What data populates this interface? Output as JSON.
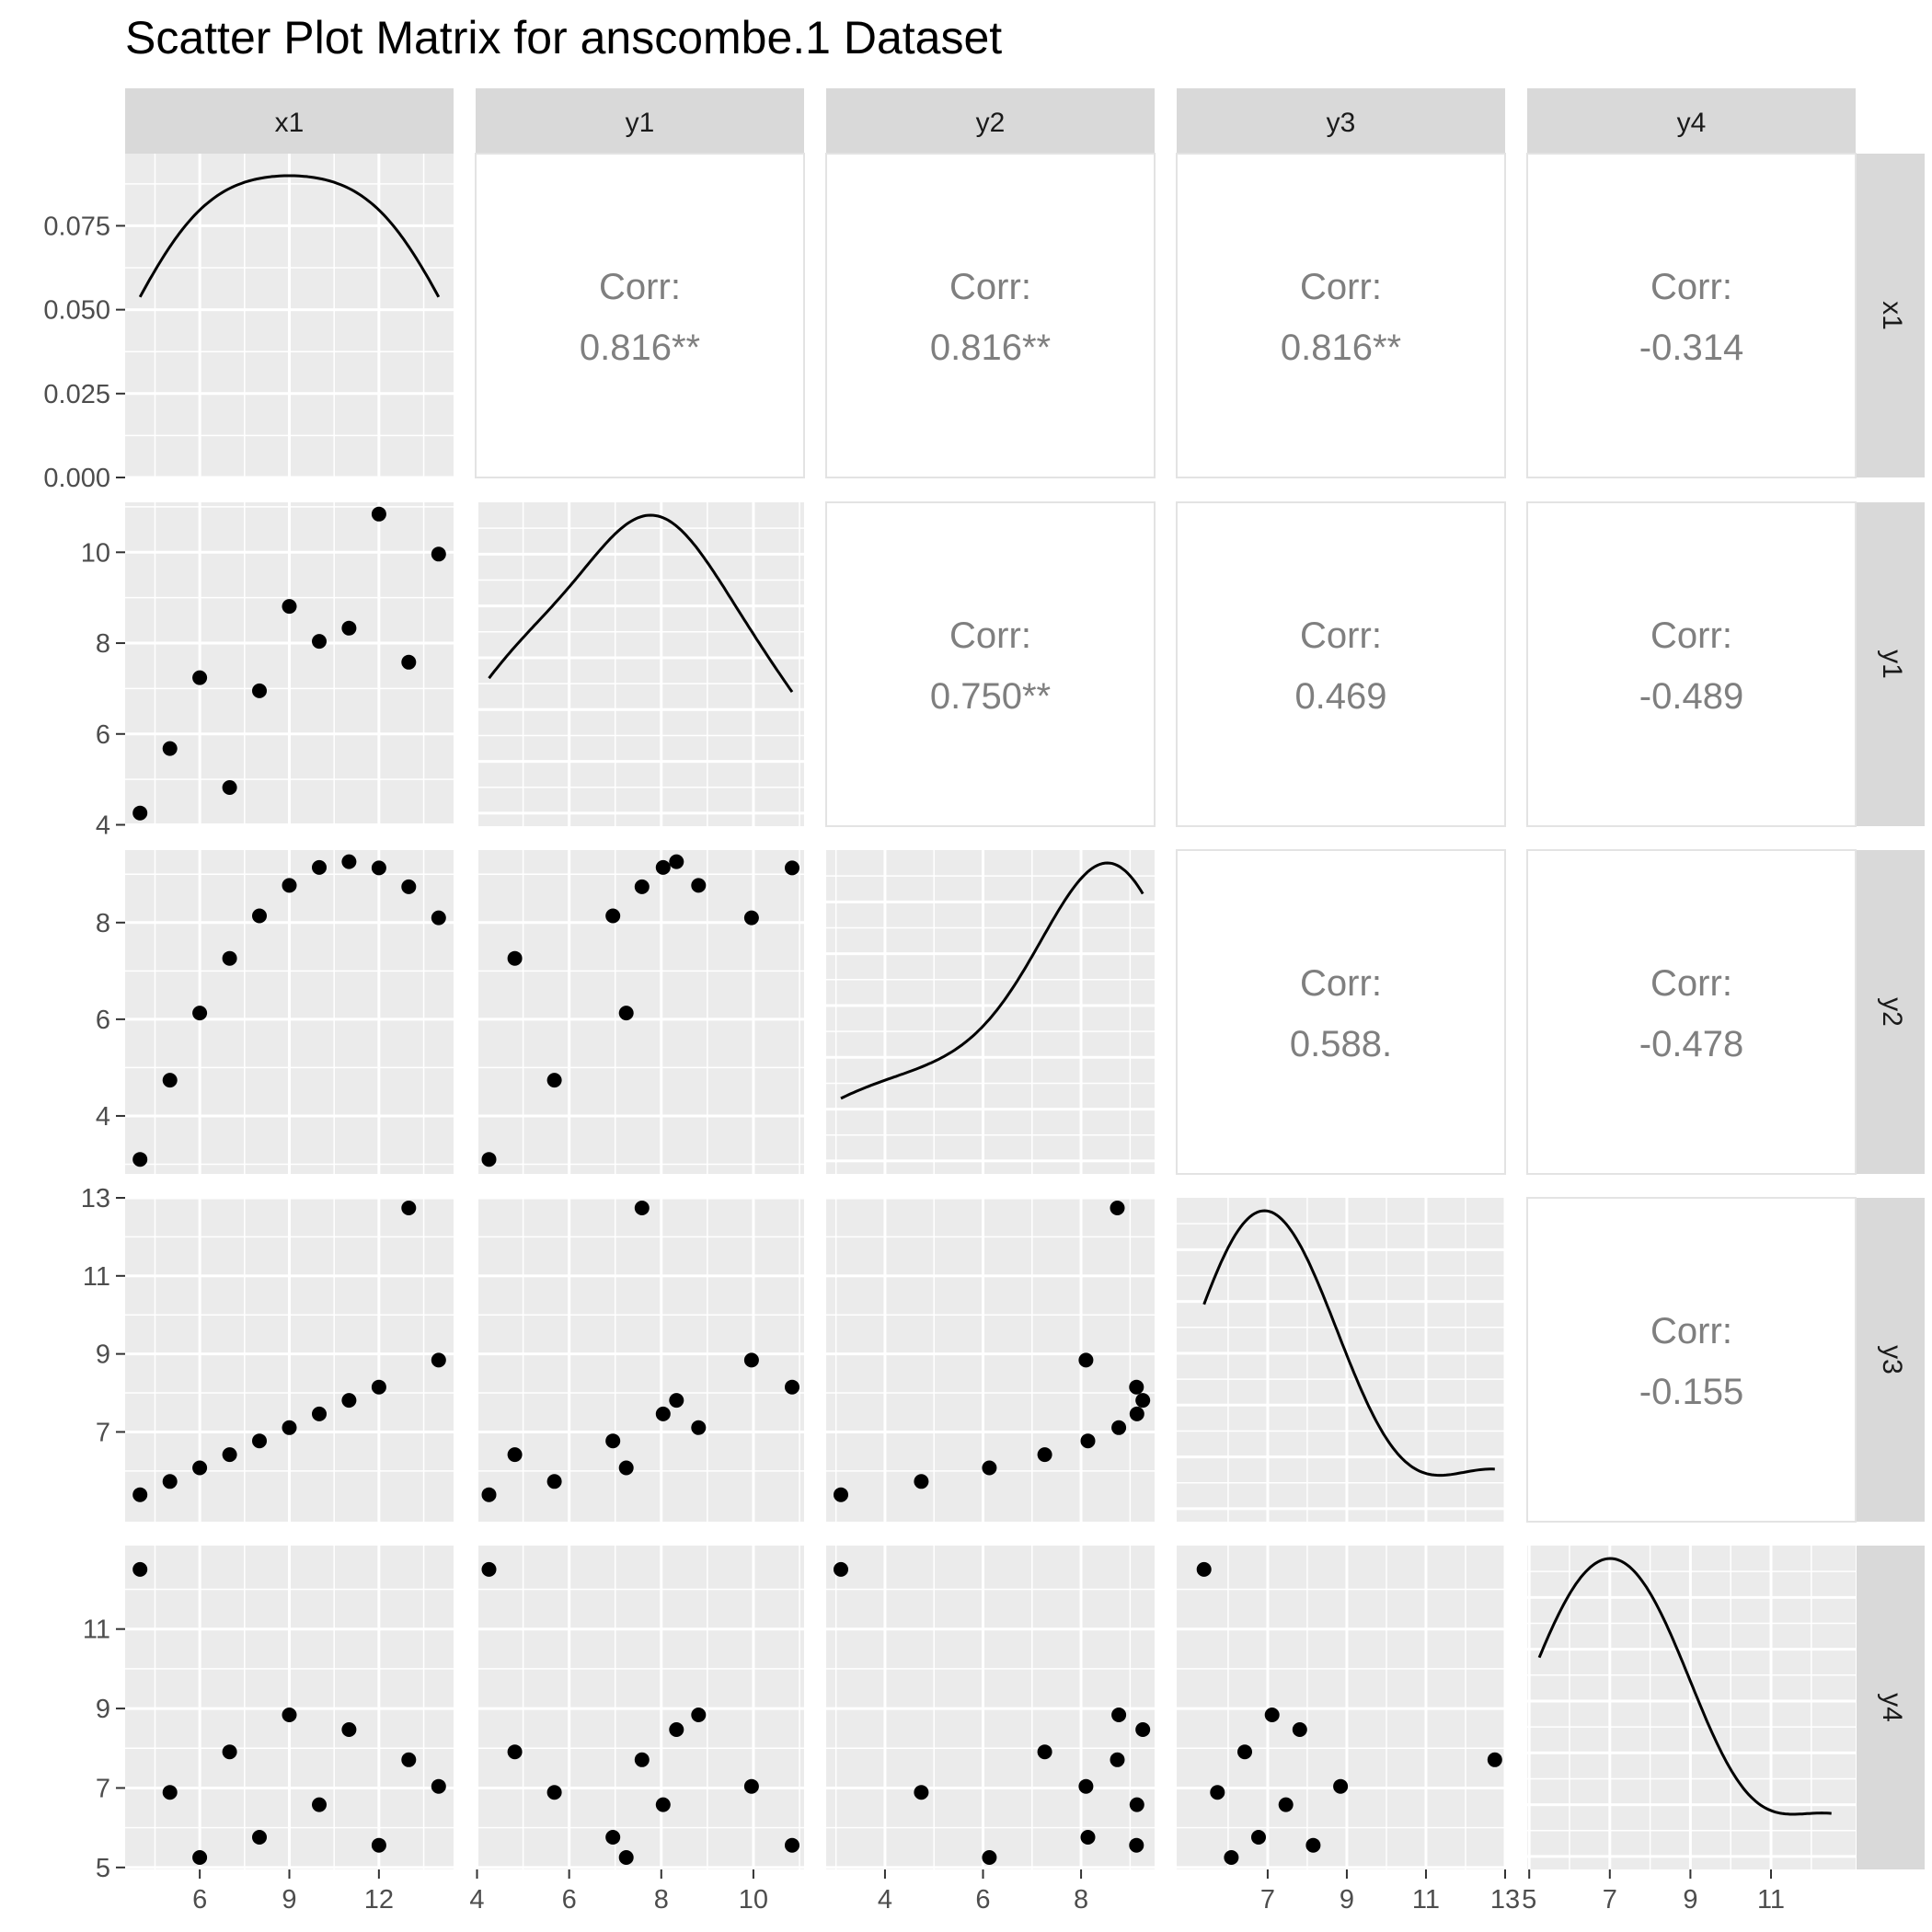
{
  "title": "Scatter Plot Matrix for anscombe.1 Dataset",
  "variables": [
    "x1",
    "y1",
    "y2",
    "y3",
    "y4"
  ],
  "colors": {
    "panel_bg": "#EBEBEB",
    "grid_major": "#FFFFFF",
    "strip_bg": "#D9D9D9",
    "corr_text": "#7F7F7F",
    "point": "#000000",
    "axis_text": "#4D4D4D"
  },
  "axes": {
    "x1": {
      "lim": [
        3.5,
        14.5
      ],
      "ticks": [
        6,
        9,
        12
      ],
      "minor": [
        4.5,
        7.5,
        10.5,
        13.5
      ]
    },
    "y1": {
      "lim": [
        3.97,
        11.1
      ],
      "ticks": [
        4,
        6,
        8,
        10
      ],
      "minor": [
        5,
        7,
        9,
        11
      ]
    },
    "y2": {
      "lim": [
        2.8,
        9.5
      ],
      "ticks": [
        4,
        6,
        8
      ],
      "minor": [
        3,
        5,
        7,
        9
      ]
    },
    "y3": {
      "lim": [
        4.7,
        13.0
      ],
      "ticks": [
        7,
        9,
        11,
        13
      ],
      "minor": [
        6,
        8,
        10,
        12
      ]
    },
    "y4": {
      "lim": [
        4.95,
        13.1
      ],
      "ticks": [
        5,
        7,
        9,
        11
      ],
      "minor": [
        6,
        8,
        10,
        12
      ]
    }
  },
  "x_axis_labels": [
    [
      "6",
      "9",
      "12"
    ],
    [
      "4",
      "6",
      "8",
      "10"
    ],
    [
      "4",
      "6",
      "8"
    ],
    [
      "7",
      "9",
      "11",
      "13"
    ],
    [
      "5",
      "7",
      "9",
      "11"
    ]
  ],
  "chart_data": {
    "type": "scatter",
    "title": "Scatter Plot Matrix for anscombe.1 Dataset",
    "variables": [
      "x1",
      "y1",
      "y2",
      "y3",
      "y4"
    ],
    "data": {
      "x1": [
        10,
        8,
        13,
        9,
        11,
        14,
        6,
        4,
        12,
        7,
        5
      ],
      "y1": [
        8.04,
        6.95,
        7.58,
        8.81,
        8.33,
        9.96,
        7.24,
        4.26,
        10.84,
        4.82,
        5.68
      ],
      "y2": [
        9.14,
        8.14,
        8.74,
        8.77,
        9.26,
        8.1,
        6.13,
        3.1,
        9.13,
        7.26,
        4.74
      ],
      "y3": [
        7.46,
        6.77,
        12.74,
        7.11,
        7.81,
        8.84,
        6.08,
        5.39,
        8.15,
        6.42,
        5.73
      ],
      "y4": [
        6.58,
        5.76,
        7.71,
        8.84,
        8.47,
        7.04,
        5.25,
        12.5,
        5.56,
        7.91,
        6.89
      ]
    },
    "diagonal": "density",
    "density_axis": {
      "label_values": [
        "0.000",
        "0.025",
        "0.050",
        "0.075"
      ],
      "ylim": [
        0,
        0.0965
      ]
    },
    "correlations": [
      {
        "row": "x1",
        "col": "y1",
        "label": "Corr:",
        "value": "0.816**"
      },
      {
        "row": "x1",
        "col": "y2",
        "label": "Corr:",
        "value": "0.816**"
      },
      {
        "row": "x1",
        "col": "y3",
        "label": "Corr:",
        "value": "0.816**"
      },
      {
        "row": "x1",
        "col": "y4",
        "label": "Corr:",
        "value": "-0.314"
      },
      {
        "row": "y1",
        "col": "y2",
        "label": "Corr:",
        "value": "0.750**"
      },
      {
        "row": "y1",
        "col": "y3",
        "label": "Corr:",
        "value": "0.469"
      },
      {
        "row": "y1",
        "col": "y4",
        "label": "Corr:",
        "value": "-0.489"
      },
      {
        "row": "y2",
        "col": "y3",
        "label": "Corr:",
        "value": "0.588."
      },
      {
        "row": "y2",
        "col": "y4",
        "label": "Corr:",
        "value": "-0.478"
      },
      {
        "row": "y3",
        "col": "y4",
        "label": "Corr:",
        "value": "-0.155"
      }
    ]
  }
}
